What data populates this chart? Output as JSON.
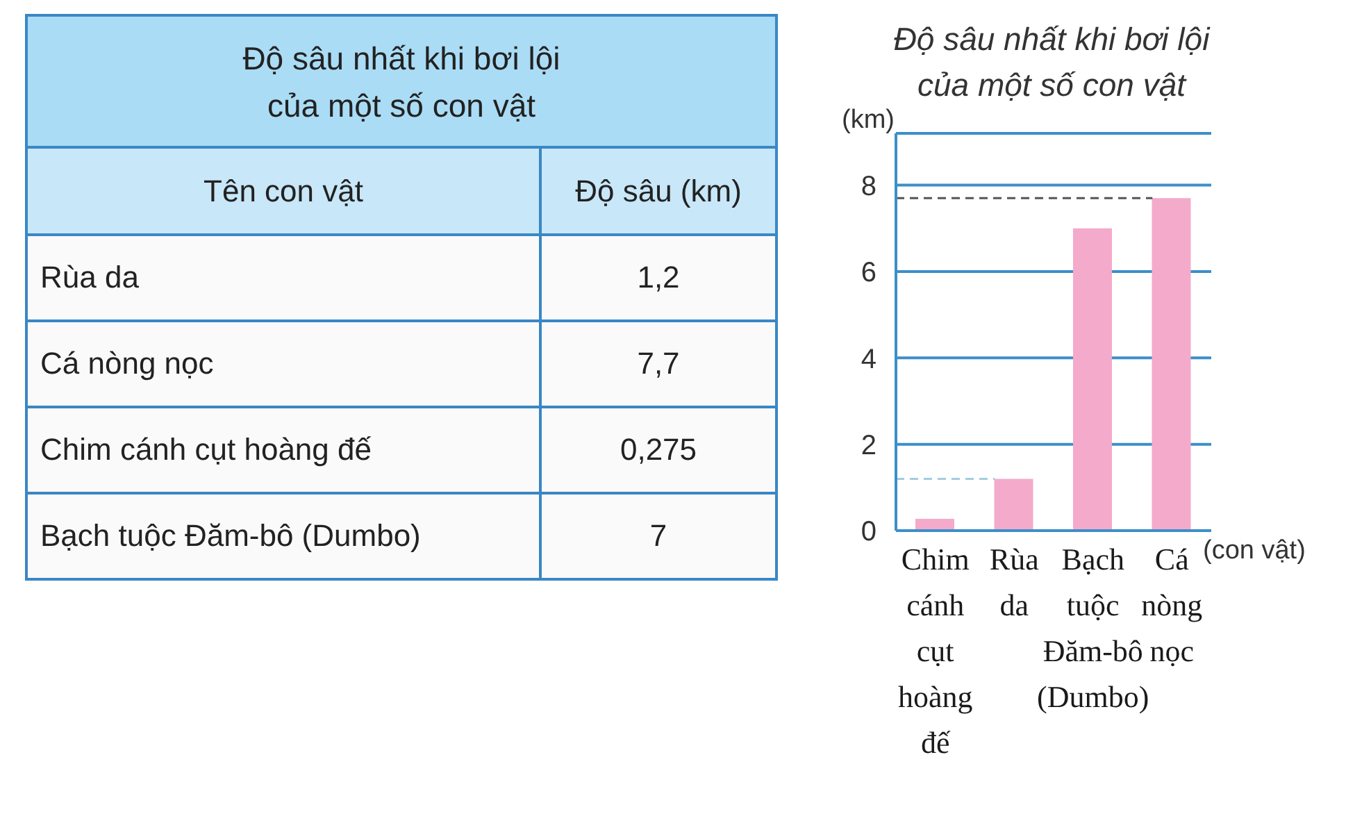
{
  "chart_data": [
    {
      "type": "other",
      "title": "Độ sâu nhất khi bơi lội của một số con vật",
      "annotations": [
        "Tên con vật",
        "Độ sâu (km)"
      ],
      "categories": [
        "Rùa da",
        "Cá nòng nọc",
        "Chim cánh cụt hoàng đế",
        "Bạch tuộc Đăm-bô (Dumbo)"
      ],
      "values": [
        1.2,
        7.7,
        0.275,
        7
      ],
      "value_labels": [
        "1,2",
        "7,7",
        "0,275",
        "7"
      ]
    },
    {
      "type": "bar",
      "title": "Độ sâu nhất khi bơi lội của một số con vật",
      "ylabel": "(km)",
      "xlabel": "(con vật)",
      "categories": [
        "Chim cánh cụt hoàng đế",
        "Rùa da",
        "Bạch tuộc Đăm-bô (Dumbo)",
        "Cá nòng nọc"
      ],
      "values": [
        0.275,
        1.2,
        7,
        7.7
      ],
      "color": "#f4aacb",
      "ylim": [
        0,
        9.2
      ],
      "yticks": [
        0,
        2,
        4,
        6,
        8
      ],
      "grid": "y",
      "ref_lines": [
        {
          "axis": "y",
          "value": 7.7,
          "color": "#555555",
          "line_style": "dashed"
        },
        {
          "axis": "y",
          "value": 1.2,
          "color": "#a3cde0",
          "line_style": "dashed"
        }
      ]
    }
  ]
}
